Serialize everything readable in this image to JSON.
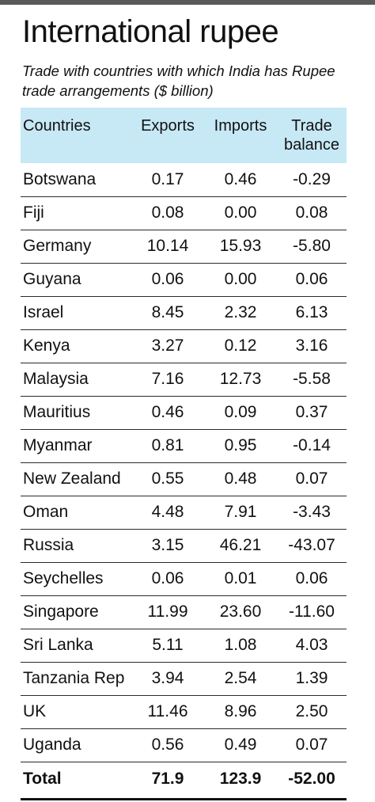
{
  "title": "International rupee",
  "subtitle": "Trade with countries with which India has Rupee trade arrangements ($ billion)",
  "chart_data": {
    "type": "table",
    "columns": [
      "Countries",
      "Exports",
      "Imports",
      "Trade balance"
    ],
    "rows": [
      [
        "Botswana",
        "0.17",
        "0.46",
        "-0.29"
      ],
      [
        "Fiji",
        "0.08",
        "0.00",
        "0.08"
      ],
      [
        "Germany",
        "10.14",
        "15.93",
        "-5.80"
      ],
      [
        "Guyana",
        "0.06",
        "0.00",
        "0.06"
      ],
      [
        "Israel",
        "8.45",
        "2.32",
        "6.13"
      ],
      [
        "Kenya",
        "3.27",
        "0.12",
        "3.16"
      ],
      [
        "Malaysia",
        "7.16",
        "12.73",
        "-5.58"
      ],
      [
        "Mauritius",
        "0.46",
        "0.09",
        "0.37"
      ],
      [
        "Myanmar",
        "0.81",
        "0.95",
        "-0.14"
      ],
      [
        "New Zealand",
        "0.55",
        "0.48",
        "0.07"
      ],
      [
        "Oman",
        "4.48",
        "7.91",
        "-3.43"
      ],
      [
        "Russia",
        "3.15",
        "46.21",
        "-43.07"
      ],
      [
        "Seychelles",
        "0.06",
        "0.01",
        "0.06"
      ],
      [
        "Singapore",
        "11.99",
        "23.60",
        "-11.60"
      ],
      [
        "Sri Lanka",
        "5.11",
        "1.08",
        "4.03"
      ],
      [
        "Tanzania Rep",
        "3.94",
        "2.54",
        "1.39"
      ],
      [
        "UK",
        "11.46",
        "8.96",
        "2.50"
      ],
      [
        "Uganda",
        "0.56",
        "0.49",
        "0.07"
      ]
    ],
    "total": [
      "Total",
      "71.9",
      "123.9",
      "-52.00"
    ]
  },
  "colors": {
    "header_bg": "#c7e8f5",
    "top_rule": "#5a5a5a"
  }
}
